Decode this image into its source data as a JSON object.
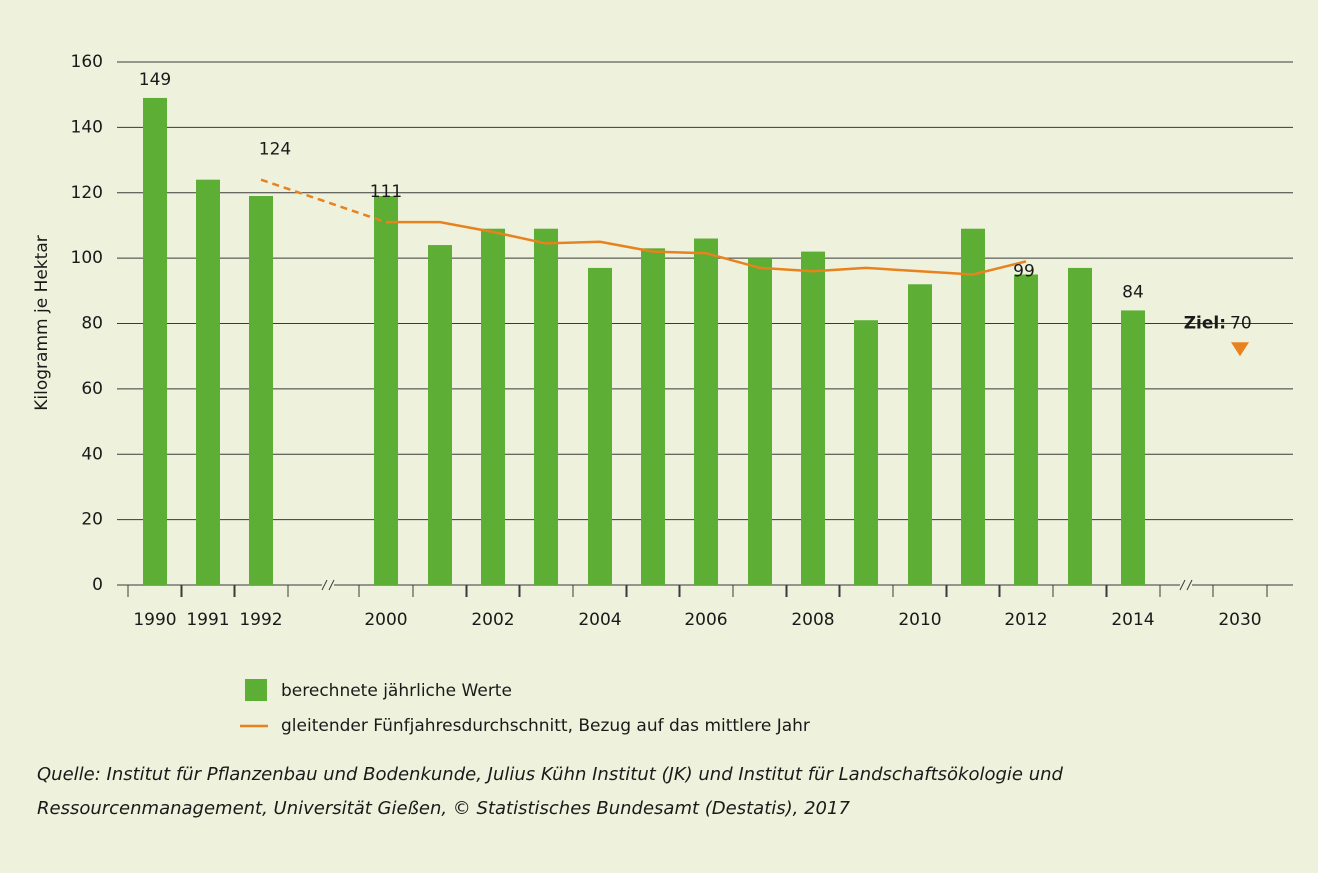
{
  "chart_data": {
    "type": "bar",
    "y_label": "Kilogramm je Hektar",
    "categories": [
      "1990",
      "1991",
      "1992",
      "2000",
      null,
      "2002",
      null,
      "2004",
      null,
      "2006",
      null,
      "2008",
      null,
      "2010",
      null,
      "2012",
      null,
      "2014",
      "2030"
    ],
    "series": [
      {
        "name": "berechnete jährliche Werte",
        "type": "bar",
        "color": "#5cae35",
        "values": [
          149,
          124,
          119,
          119,
          104,
          109,
          109,
          97,
          103,
          106,
          100,
          102,
          81,
          92,
          109,
          95,
          97,
          84,
          null
        ],
        "value_labels": [
          "149",
          null,
          null,
          null,
          null,
          null,
          null,
          null,
          null,
          null,
          null,
          null,
          null,
          null,
          null,
          null,
          null,
          "84",
          null
        ]
      },
      {
        "name": "gleitender Fünfjahresdurchschnitt, Bezug auf das mittlere Jahr",
        "type": "line",
        "color": "#e8821e",
        "values": [
          null,
          null,
          124,
          111,
          111,
          108,
          104.5,
          105,
          102,
          101.5,
          97,
          96,
          97,
          96,
          95,
          99,
          null,
          null,
          null
        ],
        "value_labels": [
          null,
          null,
          "124",
          "111",
          null,
          null,
          null,
          null,
          null,
          null,
          null,
          null,
          null,
          null,
          null,
          "99",
          null,
          null,
          null
        ]
      }
    ],
    "target": {
      "label": "Ziel:",
      "value": 70,
      "category": 18,
      "color": "#e8821e"
    },
    "ylim": [
      0,
      160
    ],
    "yticks": [
      0,
      20,
      40,
      60,
      80,
      100,
      120,
      140,
      160
    ],
    "grid": true,
    "source": [
      "Quelle: Institut für Pflanzenbau und Bodenkunde, Julius Kühn Institut (JK) und Institut für Landschaftsökologie und",
      "Ressourcenmanagement, Universität Gießen, © Statistisches Bundesamt (Destatis), 2017"
    ]
  }
}
